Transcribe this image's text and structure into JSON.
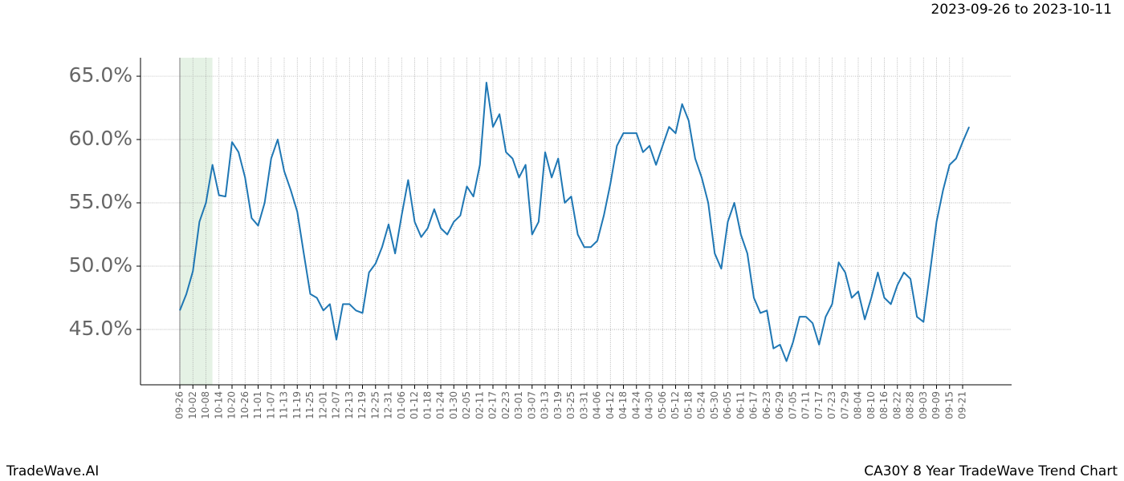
{
  "chart_data": {
    "type": "line",
    "title": "2023-09-26 to 2023-10-11",
    "footer_left": "TradeWave.AI",
    "footer_right": "CA30Y 8 Year TradeWave Trend Chart",
    "color": "#1f77b4",
    "highlight": {
      "from": "09-26",
      "to": "10-11",
      "color": "#e5f2e5"
    },
    "grid": true,
    "x": [
      "09-26",
      "09-29",
      "10-02",
      "10-05",
      "10-08",
      "10-11",
      "10-14",
      "10-17",
      "10-20",
      "10-23",
      "10-26",
      "10-29",
      "11-01",
      "11-04",
      "11-07",
      "11-10",
      "11-13",
      "11-16",
      "11-19",
      "11-22",
      "11-25",
      "11-28",
      "12-01",
      "12-04",
      "12-07",
      "12-10",
      "12-13",
      "12-16",
      "12-19",
      "12-22",
      "12-25",
      "12-28",
      "12-31",
      "01-03",
      "01-06",
      "01-09",
      "01-12",
      "01-15",
      "01-18",
      "01-21",
      "01-24",
      "01-27",
      "01-30",
      "02-02",
      "02-05",
      "02-08",
      "02-11",
      "02-14",
      "02-17",
      "02-20",
      "02-23",
      "02-26",
      "03-01",
      "03-04",
      "03-07",
      "03-10",
      "03-13",
      "03-16",
      "03-19",
      "03-22",
      "03-25",
      "03-28",
      "03-31",
      "04-03",
      "04-06",
      "04-09",
      "04-12",
      "04-15",
      "04-18",
      "04-21",
      "04-24",
      "04-27",
      "04-30",
      "05-03",
      "05-06",
      "05-09",
      "05-12",
      "05-15",
      "05-18",
      "05-21",
      "05-24",
      "05-27",
      "05-30",
      "06-02",
      "06-05",
      "06-08",
      "06-11",
      "06-14",
      "06-17",
      "06-20",
      "06-23",
      "06-26",
      "06-29",
      "07-02",
      "07-05",
      "07-08",
      "07-11",
      "07-14",
      "07-17",
      "07-20",
      "07-23",
      "07-26",
      "07-29",
      "08-01",
      "08-04",
      "08-07",
      "08-10",
      "08-13",
      "08-16",
      "08-19",
      "08-22",
      "08-25",
      "08-28",
      "08-31",
      "09-03",
      "09-06",
      "09-09",
      "09-12",
      "09-15",
      "09-18",
      "09-21",
      "09-24"
    ],
    "values": [
      46.5,
      47.8,
      49.6,
      53.5,
      55,
      58,
      55.6,
      55.5,
      59.8,
      59,
      57,
      53.8,
      53.2,
      55,
      58.5,
      60,
      57.5,
      56,
      54.3,
      51,
      47.8,
      47.5,
      46.5,
      47,
      44.2,
      47,
      47,
      46.5,
      46.3,
      49.5,
      50.2,
      51.5,
      53.3,
      51,
      54,
      56.8,
      53.5,
      52.3,
      53,
      54.5,
      53,
      52.5,
      53.5,
      54,
      56.3,
      55.5,
      58,
      64.5,
      61,
      62,
      59,
      58.5,
      57,
      58,
      52.5,
      53.5,
      59,
      57,
      58.5,
      55,
      55.5,
      52.5,
      51.5,
      51.5,
      52,
      54,
      56.5,
      59.5,
      60.5,
      60.5,
      60.5,
      59,
      59.5,
      58,
      59.5,
      61,
      60.5,
      62.8,
      61.5,
      58.5,
      57,
      55,
      51,
      49.8,
      53.5,
      55,
      52.5,
      51,
      47.5,
      46.3,
      46.5,
      43.5,
      43.8,
      42.5,
      44,
      46,
      46,
      45.5,
      43.8,
      46,
      47,
      50.3,
      49.5,
      47.5,
      48,
      45.8,
      47.5,
      49.5,
      47.5,
      47,
      48.5,
      49.5,
      49,
      46,
      45.6,
      49.5,
      53.5,
      56,
      58,
      58.5,
      59.8,
      61
    ],
    "xticks": [
      "09-26",
      "10-02",
      "10-08",
      "10-14",
      "10-20",
      "10-26",
      "11-01",
      "11-07",
      "11-13",
      "11-19",
      "11-25",
      "12-01",
      "12-07",
      "12-13",
      "12-19",
      "12-25",
      "12-31",
      "01-06",
      "01-12",
      "01-18",
      "01-24",
      "01-30",
      "02-05",
      "02-11",
      "02-17",
      "02-23",
      "03-01",
      "03-07",
      "03-13",
      "03-19",
      "03-25",
      "03-31",
      "04-06",
      "04-12",
      "04-18",
      "04-24",
      "04-30",
      "05-06",
      "05-12",
      "05-18",
      "05-24",
      "05-30",
      "06-05",
      "06-11",
      "06-17",
      "06-23",
      "06-29",
      "07-05",
      "07-11",
      "07-17",
      "07-23",
      "07-29",
      "08-04",
      "08-10",
      "08-16",
      "08-22",
      "08-28",
      "09-03",
      "09-09",
      "09-15",
      "09-21"
    ],
    "ylim": [
      40.63,
      66.46
    ],
    "yticks": [
      {
        "value": 45,
        "label": "45.0%"
      },
      {
        "value": 50,
        "label": "50.0%"
      },
      {
        "value": 55,
        "label": "55.0%"
      },
      {
        "value": 60,
        "label": "60.0%"
      },
      {
        "value": 65,
        "label": "65.0%"
      }
    ]
  }
}
